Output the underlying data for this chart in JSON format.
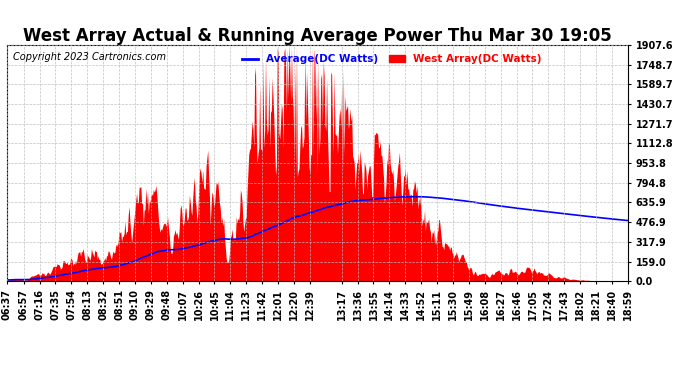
{
  "title": "West Array Actual & Running Average Power Thu Mar 30 19:05",
  "copyright": "Copyright 2023 Cartronics.com",
  "legend_avg": "Average(DC Watts)",
  "legend_west": "West Array(DC Watts)",
  "avg_color": "blue",
  "west_color": "red",
  "background_color": "#ffffff",
  "grid_color": "#bbbbbb",
  "yticks": [
    0.0,
    159.0,
    317.9,
    476.9,
    635.9,
    794.8,
    953.8,
    1112.8,
    1271.7,
    1430.7,
    1589.7,
    1748.7,
    1907.6
  ],
  "ymax": 1907.6,
  "xtick_labels": [
    "06:37",
    "06:57",
    "07:16",
    "07:35",
    "07:54",
    "08:13",
    "08:32",
    "08:51",
    "09:10",
    "09:29",
    "09:48",
    "10:07",
    "10:26",
    "10:45",
    "11:04",
    "11:23",
    "11:42",
    "12:01",
    "12:20",
    "12:39",
    "13:17",
    "13:36",
    "13:55",
    "14:14",
    "14:33",
    "14:52",
    "15:11",
    "15:30",
    "15:49",
    "16:08",
    "16:27",
    "16:46",
    "17:05",
    "17:24",
    "17:43",
    "18:02",
    "18:21",
    "18:40",
    "18:59"
  ],
  "title_fontsize": 12,
  "tick_fontsize": 7,
  "copyright_fontsize": 7
}
